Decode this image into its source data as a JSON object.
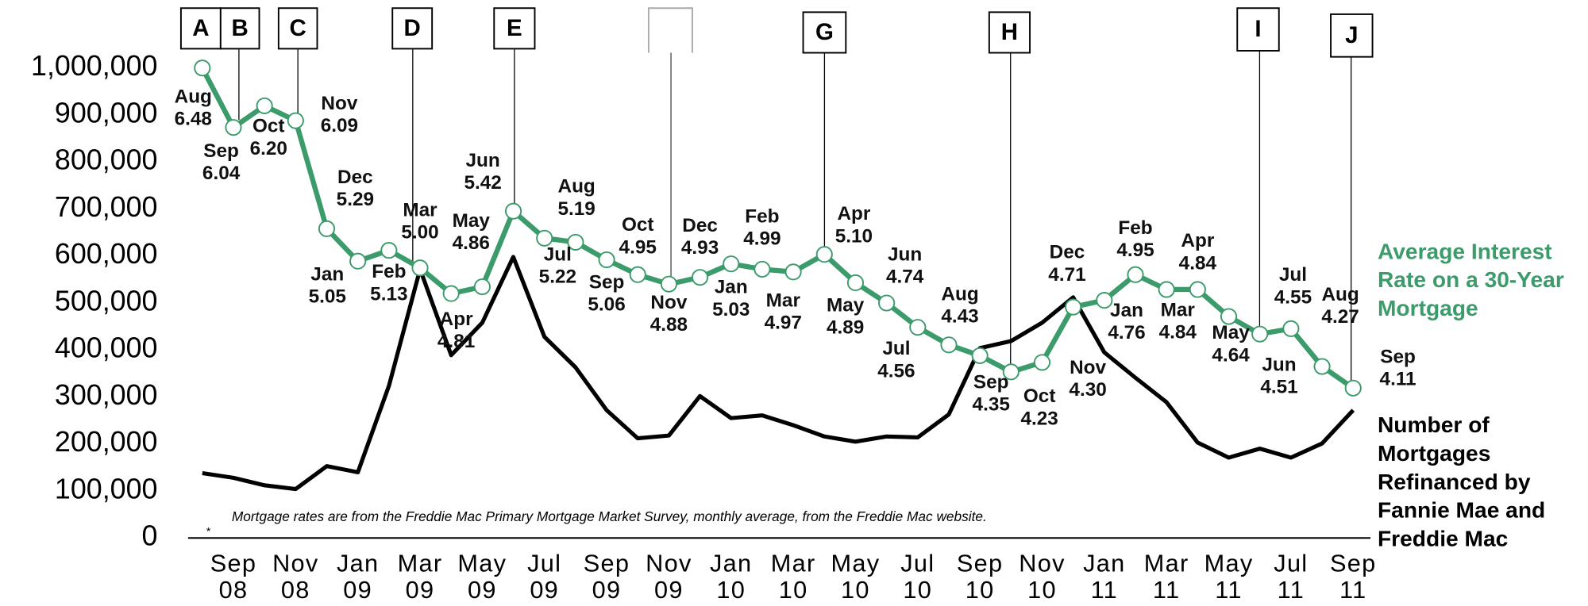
{
  "chart_data": {
    "type": "line",
    "categories": [
      null,
      "Sep 08",
      null,
      "Nov 08",
      null,
      "Jan 09",
      null,
      "Mar 09",
      null,
      "May 09",
      null,
      "Jul 09",
      null,
      "Sep 09",
      null,
      "Nov 09",
      null,
      "Jan 10",
      null,
      "Mar 10",
      null,
      "May 10",
      null,
      "Jul 10",
      null,
      "Sep 10",
      null,
      "Nov 10",
      null,
      "Jan 11",
      null,
      "Mar 11",
      null,
      "May 11",
      null,
      "Jul 11",
      null,
      "Sep 11"
    ],
    "ylim": [
      0,
      1000000
    ],
    "yticks": [
      0,
      {
        "value": 100000,
        "label": "100,000"
      },
      {
        "value": 200000,
        "label": "200,000"
      },
      {
        "value": 300000,
        "label": "300,000"
      },
      {
        "value": 400000,
        "label": "400,000"
      },
      {
        "value": 500000,
        "label": "500,000"
      },
      {
        "value": 600000,
        "label": "600,000"
      },
      {
        "value": 700000,
        "label": "700,000"
      },
      {
        "value": 800000,
        "label": "800,000"
      },
      {
        "value": 900000,
        "label": "900,000"
      },
      {
        "value": 1000000,
        "label": "1,000,000"
      }
    ],
    "y2lim": [
      3,
      6.48
    ],
    "grid": false,
    "series": [
      {
        "name": "Number of Mortgages Refinanced by Fannie Mae and Freddie Mac",
        "color": "#000000",
        "values": [
          138000,
          128000,
          112000,
          104000,
          153000,
          140000,
          324000,
          572000,
          389000,
          458000,
          598000,
          428000,
          363000,
          272000,
          212000,
          218000,
          302000,
          255000,
          261000,
          240000,
          216000,
          205000,
          216000,
          214000,
          263000,
          404000,
          419000,
          458000,
          512000,
          395000,
          341000,
          289000,
          203000,
          171000,
          190000,
          171000,
          201000,
          272000
        ]
      },
      {
        "name": "Average Interest Rate on a 30-Year Mortgage",
        "color": "#3c9b6b",
        "axis": "y2",
        "values": [
          6.48,
          6.04,
          6.2,
          6.09,
          5.29,
          5.05,
          5.13,
          5.0,
          4.81,
          4.86,
          5.42,
          5.22,
          5.19,
          5.06,
          4.95,
          4.88,
          4.93,
          5.03,
          4.99,
          4.97,
          5.1,
          4.89,
          4.74,
          4.56,
          4.43,
          4.35,
          4.23,
          4.3,
          4.71,
          4.76,
          4.95,
          4.84,
          4.84,
          4.64,
          4.51,
          4.55,
          4.27,
          4.11
        ],
        "value_labels": [
          "6.48",
          "6.04",
          "6.20",
          "6.09",
          "5.29",
          "5.05",
          "5.13",
          "5.00",
          "4.81",
          "4.86",
          "5.42",
          "5.22",
          "5.19",
          "5.06",
          "4.95",
          "4.88",
          "4.93",
          "5.03",
          "4.99",
          "4.97",
          "5.10",
          "4.89",
          "4.74",
          "4.56",
          "4.43",
          "4.35",
          "4.23",
          "4.30",
          "4.71",
          "4.76",
          "4.95",
          "4.84",
          "4.84",
          "4.64",
          "4.51",
          "4.55",
          "4.27",
          "4.11"
        ],
        "months": [
          "Aug",
          "Sep",
          "Oct",
          "Nov",
          "Dec",
          "Jan",
          "Feb",
          "Mar",
          "Apr",
          "May",
          "Jun",
          "Jul",
          "Aug",
          "Sep",
          "Oct",
          "Nov",
          "Dec",
          "Jan",
          "Feb",
          "Mar",
          "Apr",
          "May",
          "Jun",
          "Jul",
          "Aug",
          "Sep",
          "Oct",
          "Nov",
          "Dec",
          "Jan",
          "Feb",
          "Mar",
          "Apr",
          "May",
          "Jun",
          "Jul",
          "Aug",
          "Sep"
        ]
      }
    ],
    "annotations": [
      "A",
      "B",
      "C",
      "D",
      "E",
      "G",
      "H",
      "I",
      "J"
    ],
    "footnote": "Mortgage rates are from the Freddie Mac Primary Mortgage Market Survey, monthly average, from the Freddie Mac website.",
    "footnote_mark": "*"
  }
}
